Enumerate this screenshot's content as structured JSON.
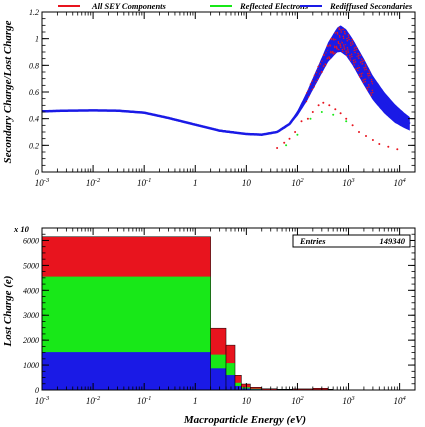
{
  "legend": {
    "items": [
      {
        "label": "All SEY Components",
        "color": "#e8141e"
      },
      {
        "label": "Reflected Electrons",
        "color": "#18e818"
      },
      {
        "label": "Rediffused Secondaries",
        "color": "#1a1ae6"
      }
    ]
  },
  "stats": {
    "label": "Entries",
    "value": "149340"
  },
  "multiplier": "x 10",
  "chart_data": [
    {
      "type": "scatter",
      "ylabel": "Secondary Charge/Lost Charge",
      "xlabel": "",
      "xscale": "log",
      "xlim": [
        0.001,
        20000
      ],
      "ylim": [
        0,
        1.2
      ],
      "x_tick_labels": [
        "10^-3",
        "10^-2",
        "10^-1",
        "1",
        "10",
        "10^2",
        "10^3",
        "10^4"
      ],
      "y_tick_labels": [
        "0",
        "0.2",
        "0.4",
        "0.6",
        "0.8",
        "1",
        "1.2"
      ],
      "series": [
        {
          "name": "All SEY Components",
          "color": "#e8141e",
          "points": [
            [
              40,
              0.18
            ],
            [
              55,
              0.22
            ],
            [
              70,
              0.25
            ],
            [
              90,
              0.3
            ],
            [
              120,
              0.38
            ],
            [
              160,
              0.4
            ],
            [
              200,
              0.45
            ],
            [
              260,
              0.5
            ],
            [
              320,
              0.52
            ],
            [
              420,
              0.5
            ],
            [
              550,
              0.47
            ],
            [
              700,
              0.44
            ],
            [
              900,
              0.4
            ],
            [
              1200,
              0.35
            ],
            [
              1600,
              0.3
            ],
            [
              2200,
              0.27
            ],
            [
              3000,
              0.24
            ],
            [
              4000,
              0.21
            ],
            [
              6000,
              0.19
            ],
            [
              9000,
              0.17
            ]
          ]
        },
        {
          "name": "Reflected Electrons",
          "color": "#18e818",
          "points": [
            [
              60,
              0.2
            ],
            [
              100,
              0.28
            ],
            [
              180,
              0.4
            ],
            [
              300,
              0.45
            ],
            [
              500,
              0.43
            ],
            [
              900,
              0.38
            ]
          ]
        },
        {
          "name": "Rediffused Secondaries",
          "color": "#1a1ae6",
          "curve": [
            [
              0.001,
              0.455
            ],
            [
              0.003,
              0.46
            ],
            [
              0.01,
              0.462
            ],
            [
              0.03,
              0.46
            ],
            [
              0.1,
              0.445
            ],
            [
              0.3,
              0.405
            ],
            [
              1,
              0.355
            ],
            [
              3,
              0.31
            ],
            [
              10,
              0.285
            ],
            [
              20,
              0.28
            ],
            [
              40,
              0.3
            ],
            [
              70,
              0.36
            ],
            [
              100,
              0.44
            ],
            [
              150,
              0.56
            ],
            [
              200,
              0.66
            ],
            [
              300,
              0.8
            ],
            [
              400,
              0.9
            ],
            [
              500,
              0.95
            ],
            [
              600,
              0.99
            ],
            [
              700,
              1.0
            ],
            [
              900,
              0.97
            ],
            [
              1200,
              0.9
            ],
            [
              2000,
              0.75
            ],
            [
              3000,
              0.63
            ],
            [
              5000,
              0.52
            ],
            [
              8000,
              0.44
            ],
            [
              12000,
              0.39
            ],
            [
              16000,
              0.36
            ]
          ],
          "band_width": [
            [
              60,
              0.0
            ],
            [
              100,
              0.02
            ],
            [
              300,
              0.06
            ],
            [
              700,
              0.1
            ],
            [
              2000,
              0.1
            ],
            [
              8000,
              0.07
            ],
            [
              16000,
              0.05
            ]
          ]
        }
      ]
    },
    {
      "type": "bar",
      "xlabel": "Macroparticle Energy (eV)",
      "ylabel": "Lost Charge (e)",
      "xscale": "log",
      "xlim": [
        0.001,
        20000
      ],
      "ylim": [
        0,
        6500
      ],
      "x_tick_labels": [
        "10^-3",
        "10^-2",
        "10^-1",
        "1",
        "10",
        "10^2",
        "10^3",
        "10^4"
      ],
      "y_tick_labels": [
        "0",
        "1000",
        "2000",
        "3000",
        "4000",
        "5000",
        "6000"
      ],
      "bins": [
        {
          "x0": 0.001,
          "x1": 2.0,
          "total": 6150,
          "green": 4550,
          "blue": 1520
        },
        {
          "x0": 2.0,
          "x1": 4.0,
          "total": 2480,
          "green": 1420,
          "blue": 870
        },
        {
          "x0": 4.0,
          "x1": 6.0,
          "total": 1800,
          "green": 1080,
          "blue": 600
        },
        {
          "x0": 6.0,
          "x1": 8.0,
          "total": 590,
          "green": 290,
          "blue": 160
        },
        {
          "x0": 8.0,
          "x1": 12.0,
          "total": 240,
          "green": 110,
          "blue": 60
        },
        {
          "x0": 12.0,
          "x1": 20.0,
          "total": 110,
          "green": 50,
          "blue": 30
        },
        {
          "x0": 20.0,
          "x1": 40.0,
          "total": 50,
          "green": 20,
          "blue": 10
        },
        {
          "x0": 40.0,
          "x1": 80.0,
          "total": 30,
          "green": 10,
          "blue": 5
        },
        {
          "x0": 80.0,
          "x1": 200.0,
          "total": 45,
          "green": 15,
          "blue": 8
        },
        {
          "x0": 200.0,
          "x1": 400.0,
          "total": 70,
          "green": 20,
          "blue": 10
        },
        {
          "x0": 400.0,
          "x1": 500.0,
          "total": 30,
          "green": 10,
          "blue": 5
        }
      ]
    }
  ]
}
